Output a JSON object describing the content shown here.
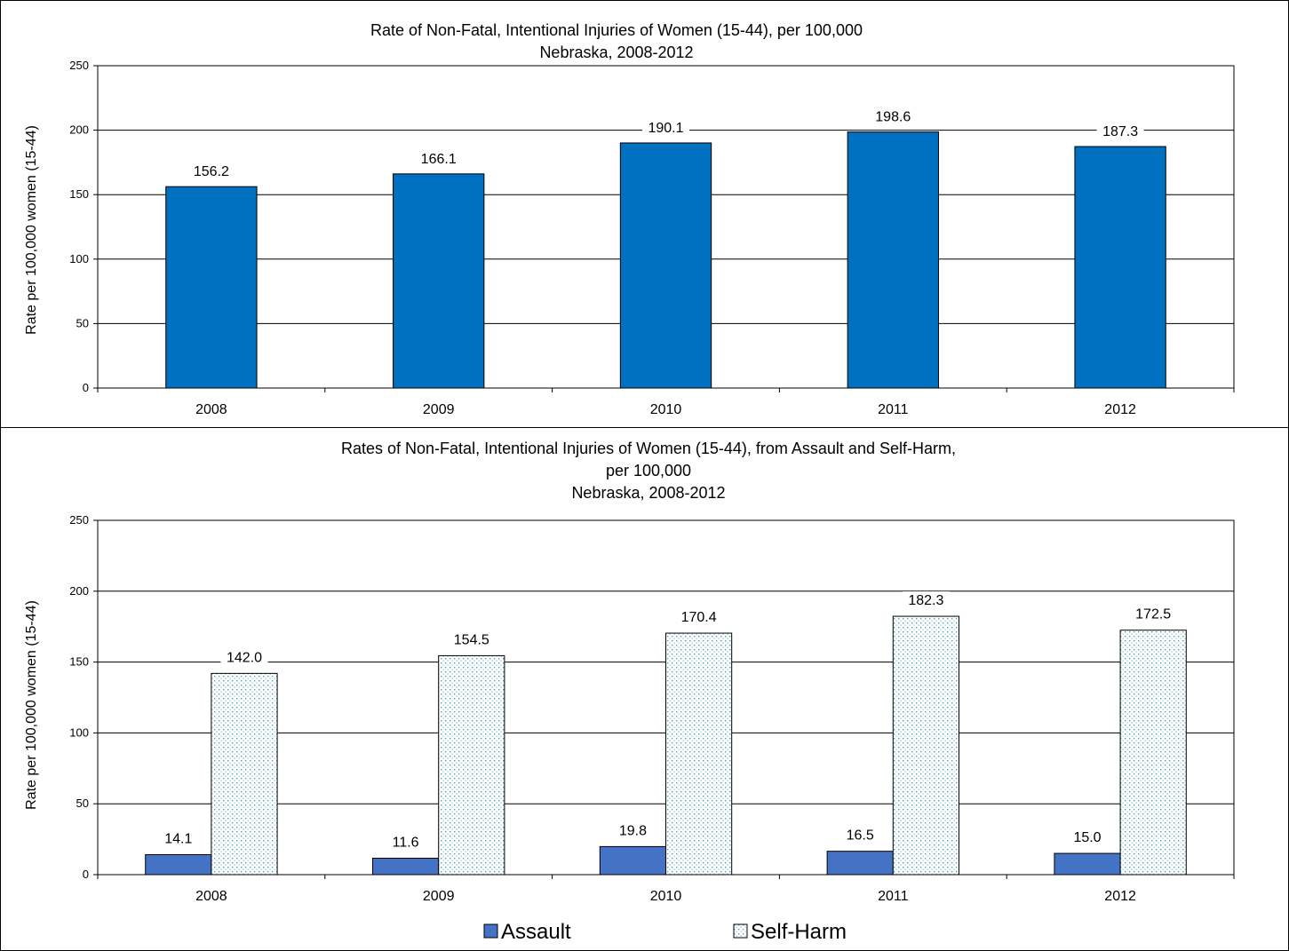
{
  "colors": {
    "total_bar": "#0070c0",
    "assault_bar": "#4472c4",
    "selfharm_fill": "#ffffff",
    "selfharm_dots": "#4a9fb5",
    "gridline": "#000000"
  },
  "chart_data": [
    {
      "type": "bar",
      "title_lines": [
        "Rate of Non-Fatal, Intentional Injuries of Women (15-44), per 100,000",
        "Nebraska, 2008-2012"
      ],
      "xlabel": "",
      "ylabel": "Rate per 100,000 women (15-44)",
      "categories": [
        "2008",
        "2009",
        "2010",
        "2011",
        "2012"
      ],
      "values": [
        156.2,
        166.1,
        190.1,
        198.6,
        187.3
      ],
      "value_labels": [
        "156.2",
        "166.1",
        "190.1",
        "198.6",
        "187.3"
      ],
      "ylim": [
        0,
        250
      ],
      "yticks": [
        0,
        50,
        100,
        150,
        200,
        250
      ],
      "ytick_labels": [
        "0",
        "50",
        "100",
        "150",
        "200",
        "250"
      ],
      "grid": true,
      "legend": "none"
    },
    {
      "type": "bar",
      "title_lines": [
        "Rates of Non-Fatal, Intentional Injuries of Women (15-44), from Assault and Self-Harm,",
        "per 100,000",
        "Nebraska, 2008-2012"
      ],
      "xlabel": "",
      "ylabel": "Rate per 100,000 women (15-44)",
      "categories": [
        "2008",
        "2009",
        "2010",
        "2011",
        "2012"
      ],
      "series": [
        {
          "name": "Assault",
          "values": [
            14.1,
            11.6,
            19.8,
            16.5,
            15.0
          ],
          "value_labels": [
            "14.1",
            "11.6",
            "19.8",
            "16.5",
            "15.0"
          ]
        },
        {
          "name": "Self-Harm",
          "values": [
            142.0,
            154.5,
            170.4,
            182.3,
            172.5
          ],
          "value_labels": [
            "142.0",
            "154.5",
            "170.4",
            "182.3",
            "172.5"
          ]
        }
      ],
      "ylim": [
        0,
        250
      ],
      "yticks": [
        0,
        50,
        100,
        150,
        200,
        250
      ],
      "ytick_labels": [
        "0",
        "50",
        "100",
        "150",
        "200",
        "250"
      ],
      "grid": true,
      "legend": "bottom-center"
    }
  ]
}
